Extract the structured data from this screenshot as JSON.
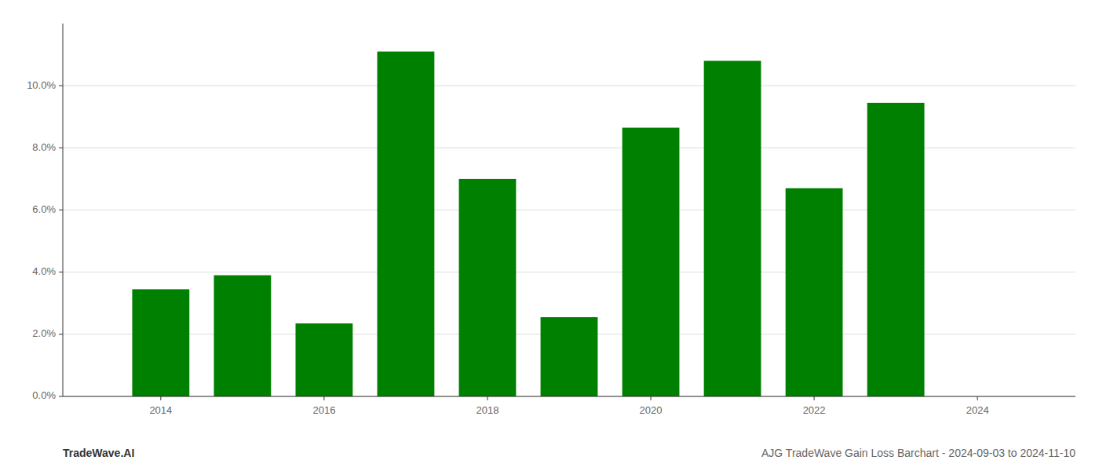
{
  "chart_data": {
    "type": "bar",
    "title": "AJG TradeWave Gain Loss Barchart - 2024-09-03 to 2024-11-10",
    "annotations": [
      "TradeWave.AI"
    ],
    "x": [
      2014,
      2015,
      2016,
      2017,
      2018,
      2019,
      2020,
      2021,
      2022,
      2023
    ],
    "values": [
      0.0345,
      0.039,
      0.0235,
      0.111,
      0.07,
      0.0255,
      0.0865,
      0.108,
      0.067,
      0.0945
    ],
    "color": "#008000",
    "xlim": [
      2012.8,
      2025.2
    ],
    "xticks": [
      2014,
      2016,
      2018,
      2020,
      2022,
      2024
    ],
    "ylim": [
      0,
      0.12
    ],
    "yticks": [
      {
        "value": 0.0,
        "label": "0.0%"
      },
      {
        "value": 0.02,
        "label": "2.0%"
      },
      {
        "value": 0.04,
        "label": "4.0%"
      },
      {
        "value": 0.06,
        "label": "6.0%"
      },
      {
        "value": 0.08,
        "label": "8.0%"
      },
      {
        "value": 0.1,
        "label": "10.0%"
      }
    ],
    "grid": true
  }
}
